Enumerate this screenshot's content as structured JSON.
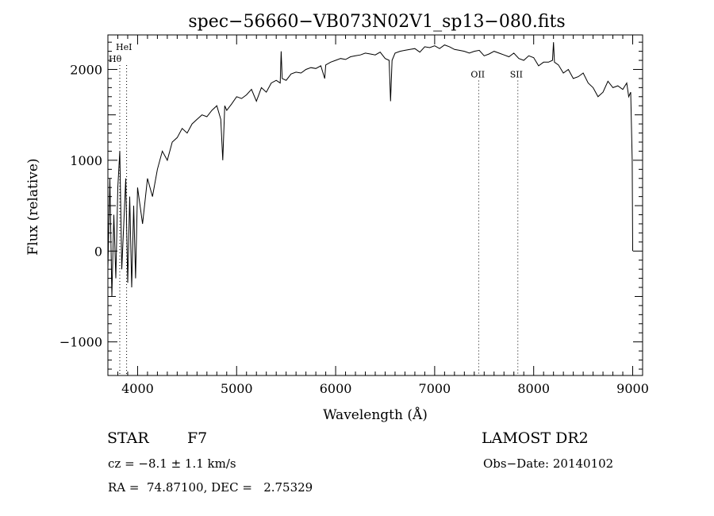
{
  "chart_data": {
    "type": "line",
    "title": "spec−56660−VB073N02V1_sp13−080.fits",
    "xlabel": "Wavelength (Å)",
    "ylabel": "Flux (relative)",
    "xlim": [
      3700,
      9100
    ],
    "ylim": [
      -1370,
      2380
    ],
    "xticks": [
      4000,
      5000,
      6000,
      7000,
      8000,
      9000
    ],
    "xtick_labels": [
      "4000",
      "5000",
      "6000",
      "7000",
      "8000",
      "9000"
    ],
    "yticks": [
      -1000,
      0,
      1000,
      2000
    ],
    "ytick_labels": [
      "−1000",
      "0",
      "1000",
      "2000"
    ],
    "grid": false,
    "line_color": "#000000",
    "lines": [
      {
        "label": "HeI",
        "x": 3820
      },
      {
        "label": "Hθ",
        "x": 3889
      },
      {
        "label": "OII",
        "x": 7445
      },
      {
        "label": "SII",
        "x": 7840
      }
    ],
    "series": [
      {
        "x": [
          3700,
          3720,
          3740,
          3760,
          3780,
          3800,
          3820,
          3840,
          3860,
          3880,
          3900,
          3920,
          3940,
          3960,
          3980,
          4000,
          4050,
          4100,
          4150,
          4200,
          4250,
          4300,
          4350,
          4400,
          4450,
          4500,
          4550,
          4600,
          4650,
          4700,
          4750,
          4800,
          4840,
          4860,
          4880,
          4900,
          4950,
          5000,
          5050,
          5100,
          5150,
          5200,
          5250,
          5300,
          5350,
          5400,
          5440,
          5450,
          5460,
          5500,
          5550,
          5600,
          5650,
          5700,
          5750,
          5800,
          5850,
          5890,
          5900,
          5950,
          6000,
          6050,
          6100,
          6150,
          6200,
          6250,
          6300,
          6350,
          6400,
          6450,
          6500,
          6540,
          6555,
          6570,
          6600,
          6650,
          6700,
          6750,
          6800,
          6850,
          6900,
          6950,
          7000,
          7050,
          7100,
          7150,
          7200,
          7250,
          7300,
          7350,
          7400,
          7450,
          7500,
          7550,
          7600,
          7650,
          7700,
          7750,
          7800,
          7850,
          7900,
          7950,
          8000,
          8050,
          8100,
          8150,
          8190,
          8200,
          8210,
          8250,
          8300,
          8350,
          8400,
          8450,
          8500,
          8550,
          8600,
          8650,
          8700,
          8750,
          8800,
          8850,
          8900,
          8940,
          8960,
          8980,
          8995,
          9000
        ],
        "y": [
          -200,
          800,
          -500,
          400,
          -300,
          700,
          1100,
          -200,
          300,
          800,
          -350,
          600,
          -400,
          500,
          -300,
          700,
          300,
          800,
          600,
          900,
          1100,
          1000,
          1200,
          1250,
          1350,
          1300,
          1400,
          1450,
          1500,
          1480,
          1550,
          1600,
          1450,
          1000,
          1600,
          1550,
          1620,
          1700,
          1680,
          1720,
          1780,
          1650,
          1800,
          1750,
          1850,
          1880,
          1850,
          2200,
          1900,
          1880,
          1950,
          1970,
          1960,
          2000,
          2020,
          2010,
          2040,
          1900,
          2050,
          2080,
          2100,
          2120,
          2110,
          2140,
          2150,
          2160,
          2180,
          2170,
          2160,
          2190,
          2120,
          2100,
          1650,
          2100,
          2180,
          2200,
          2210,
          2220,
          2230,
          2190,
          2250,
          2240,
          2260,
          2230,
          2270,
          2250,
          2220,
          2210,
          2200,
          2180,
          2200,
          2210,
          2150,
          2170,
          2200,
          2180,
          2160,
          2140,
          2180,
          2120,
          2100,
          2150,
          2130,
          2040,
          2080,
          2080,
          2100,
          2300,
          2080,
          2050,
          1960,
          2000,
          1900,
          1920,
          1960,
          1850,
          1800,
          1700,
          1750,
          1870,
          1800,
          1820,
          1780,
          1850,
          1700,
          1750,
          1000,
          0
        ]
      }
    ]
  },
  "info": {
    "object_type": "STAR",
    "subclass": "F7",
    "survey": "LAMOST DR2",
    "cz": "cz = −8.1 ± 1.1 km/s",
    "obs_date": "Obs−Date: 20140102",
    "coords": "RA =  74.87100, DEC =   2.75329"
  }
}
